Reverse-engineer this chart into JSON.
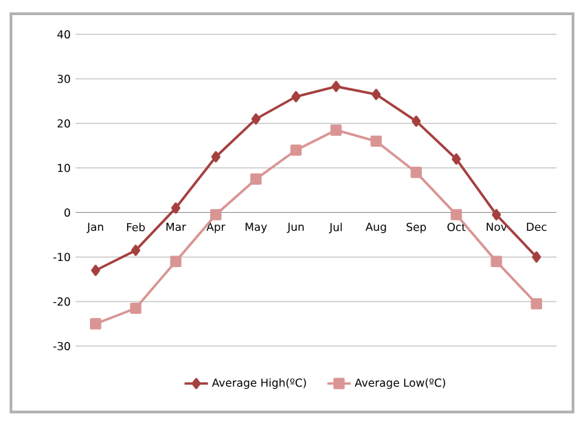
{
  "chart_data": {
    "type": "line",
    "categories": [
      "Jan",
      "Feb",
      "Mar",
      "Apr",
      "May",
      "Jun",
      "Jul",
      "Aug",
      "Sep",
      "Oct",
      "Nov",
      "Dec"
    ],
    "series": [
      {
        "name": "Average High(ºC)",
        "color": "#a5403e",
        "marker": "diamond",
        "values": [
          -13,
          -8.5,
          1,
          12.5,
          21,
          26,
          28.3,
          26.5,
          20.5,
          12,
          -0.5,
          -10
        ]
      },
      {
        "name": "Average Low(ºC)",
        "color": "#d99594",
        "marker": "square",
        "values": [
          -25,
          -21.5,
          -11,
          -0.5,
          7.5,
          14,
          18.5,
          16,
          9,
          -0.5,
          -11,
          -20.5
        ]
      }
    ],
    "ylim": [
      -30,
      40
    ],
    "yticks": [
      -30,
      -20,
      -10,
      0,
      10,
      20,
      30,
      40
    ],
    "grid": "y",
    "legend": "bottom",
    "line_style": "solid"
  }
}
